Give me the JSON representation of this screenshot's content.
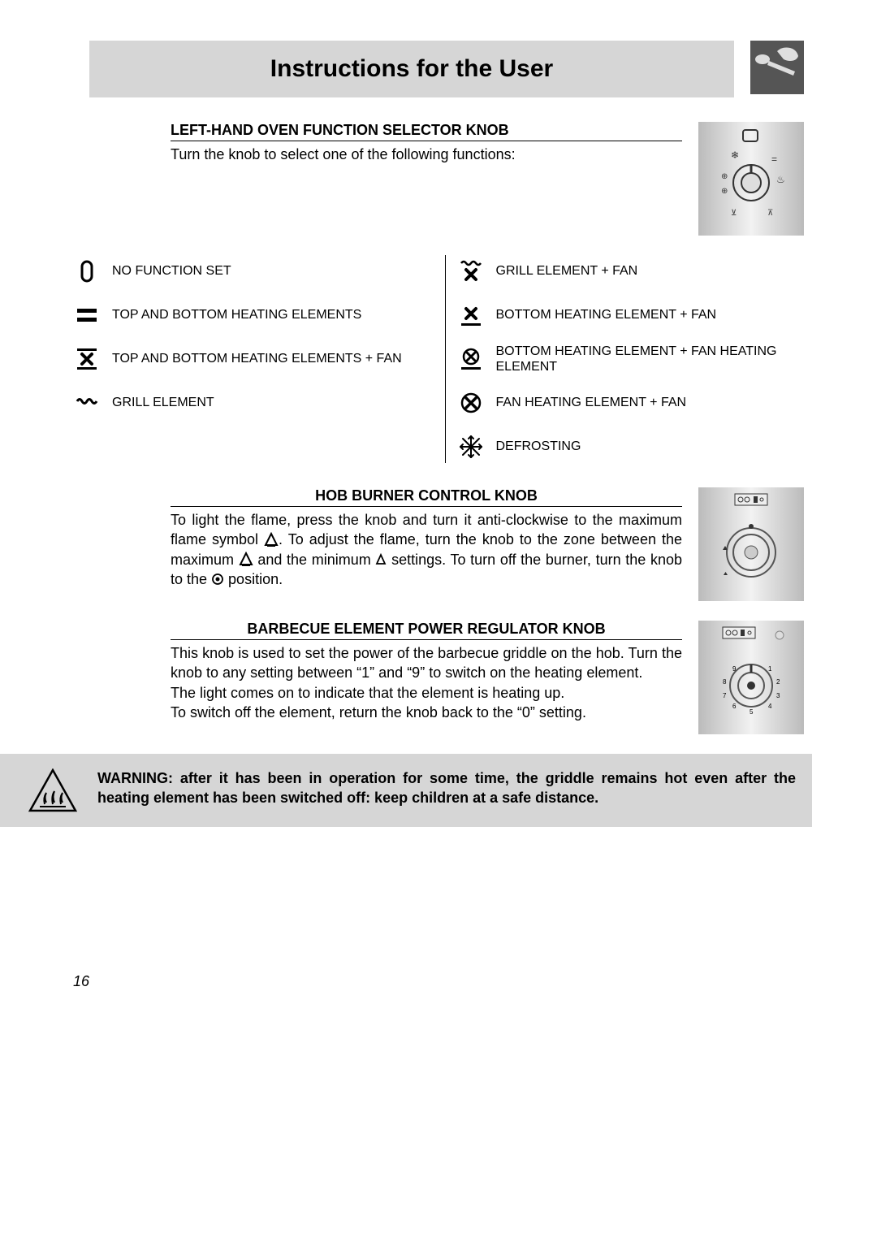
{
  "page": {
    "title": "Instructions for the User",
    "number": "16"
  },
  "section1": {
    "heading": "LEFT-HAND OVEN FUNCTION SELECTOR KNOB",
    "intro": "Turn the knob to select one of the following functions:"
  },
  "functions": {
    "left": [
      {
        "icon": "no-function",
        "label": "NO FUNCTION SET"
      },
      {
        "icon": "top-bottom",
        "label": "TOP AND BOTTOM HEATING ELEMENTS"
      },
      {
        "icon": "top-bottom-fan",
        "label": "TOP AND BOTTOM HEATING ELEMENTS + FAN"
      },
      {
        "icon": "grill",
        "label": "GRILL ELEMENT"
      }
    ],
    "right": [
      {
        "icon": "grill-fan",
        "label": "GRILL ELEMENT + FAN"
      },
      {
        "icon": "bottom-fan",
        "label": "BOTTOM HEATING ELEMENT + FAN"
      },
      {
        "icon": "bottom-fanheat",
        "label": "BOTTOM HEATING ELEMENT + FAN HEATING ELEMENT"
      },
      {
        "icon": "fanheat-fan",
        "label": "FAN HEATING ELEMENT + FAN"
      },
      {
        "icon": "defrost",
        "label": "DEFROSTING"
      }
    ]
  },
  "section2": {
    "heading": "HOB BURNER CONTROL KNOB",
    "p1a": "To light the flame, press the knob and turn it anti-clockwise to the maximum flame symbol ",
    "p1b": ". To adjust the flame, turn the knob to the zone between the maximum ",
    "p1c": " and the minimum ",
    "p1d": " settings. To turn off the burner, turn the knob to the ",
    "p1e": " position."
  },
  "section3": {
    "heading": "BARBECUE ELEMENT POWER REGULATOR KNOB",
    "p1": "This knob is used to set the power of the barbecue griddle on the hob. Turn the knob to any setting between “1” and “9” to switch on the heating element.",
    "p2": "The light comes on to indicate that the element is heating up.",
    "p3": "To switch off the element, return the knob back to the “0” setting."
  },
  "warning": {
    "text": "WARNING: after it has been in operation for some time, the griddle remains hot even after the heating element has been switched off: keep children at a safe distance."
  },
  "colors": {
    "banner_bg": "#d6d6d6",
    "page_bg": "#ffffff",
    "text": "#000000"
  }
}
